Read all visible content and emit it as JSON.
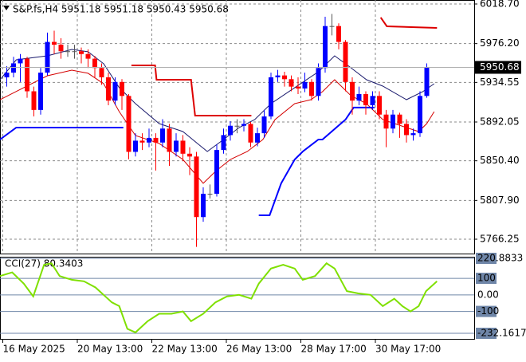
{
  "chart_data": [
    {
      "type": "candlestick",
      "title": "S&P.fs,H4  5951.18 5951.18 5950.43 5950.68",
      "xlim": [
        -1,
        69
      ],
      "xticks": [
        {
          "value": 0,
          "label": "16 May 2025"
        },
        {
          "value": 11,
          "label": "20 May 13:00"
        },
        {
          "value": 22,
          "label": "22 May 13:00"
        },
        {
          "value": 33,
          "label": "26 May 13:00"
        },
        {
          "value": 44,
          "label": "28 May 17:00"
        },
        {
          "value": 55,
          "label": "30 May 17:00"
        }
      ],
      "ylim": [
        5750.85,
        6022.98
      ],
      "yticks": [
        {
          "value": 6018.7,
          "label": "6018.70"
        },
        {
          "value": 5976.2,
          "label": "5976.20"
        },
        5934.55,
        5892.05,
        {
          "value": 5850.4,
          "label": "5850.40"
        },
        {
          "value": 5807.9,
          "label": "5807.90"
        },
        5766.25
      ],
      "grid": true,
      "last_price": 5950.68,
      "up_color": "#0000ff",
      "down_color": "#ff0000",
      "open": [
        5940,
        5945,
        5955,
        5960,
        5925,
        5905,
        5945,
        5978,
        5975,
        5968,
        5968,
        5968,
        5965,
        5960,
        5950,
        5940,
        5915,
        5935,
        5920,
        5860,
        5872,
        5870,
        5875,
        5870,
        5885,
        5860,
        5872,
        5858,
        5855,
        5790,
        5815,
        5815,
        5862,
        5878,
        5888,
        5888,
        5890,
        5870,
        5880,
        5898,
        5940,
        5942,
        5938,
        5930,
        5928,
        5935,
        5920,
        5950,
        5995,
        5995,
        5978,
        5935,
        5915,
        5922,
        5910,
        5920,
        5900,
        5885,
        5900,
        5890,
        5878,
        5880,
        5920
      ],
      "high": [
        5952,
        5962,
        5965,
        5962,
        5930,
        5950,
        5988,
        5990,
        5982,
        5975,
        5975,
        5972,
        5970,
        5963,
        5955,
        5945,
        5940,
        5938,
        5922,
        5880,
        5880,
        5885,
        5880,
        5895,
        5890,
        5880,
        5878,
        5865,
        5860,
        5822,
        5825,
        5868,
        5885,
        5893,
        5895,
        5895,
        5892,
        5886,
        5905,
        5945,
        5948,
        5946,
        5942,
        5940,
        5945,
        5938,
        5955,
        6005,
        6008,
        5998,
        5980,
        5940,
        5930,
        5925,
        5925,
        5925,
        5905,
        5905,
        5902,
        5895,
        5885,
        5925,
        5955
      ],
      "low": [
        5930,
        5940,
        5935,
        5918,
        5898,
        5900,
        5942,
        5965,
        5960,
        5962,
        5960,
        5955,
        5950,
        5940,
        5932,
        5910,
        5910,
        5905,
        5852,
        5855,
        5862,
        5865,
        5840,
        5865,
        5845,
        5855,
        5850,
        5835,
        5758,
        5785,
        5810,
        5812,
        5858,
        5872,
        5880,
        5882,
        5865,
        5866,
        5875,
        5895,
        5935,
        5930,
        5925,
        5922,
        5924,
        5915,
        5915,
        5945,
        5985,
        5970,
        5925,
        5900,
        5910,
        5900,
        5905,
        5895,
        5865,
        5880,
        5875,
        5870,
        5872,
        5876,
        5918
      ],
      "close": [
        5945,
        5955,
        5960,
        5925,
        5905,
        5945,
        5978,
        5975,
        5968,
        5968,
        5968,
        5965,
        5960,
        5950,
        5940,
        5915,
        5935,
        5920,
        5860,
        5872,
        5870,
        5875,
        5870,
        5885,
        5860,
        5872,
        5858,
        5855,
        5790,
        5815,
        5815,
        5862,
        5878,
        5888,
        5888,
        5890,
        5870,
        5880,
        5898,
        5940,
        5942,
        5938,
        5930,
        5928,
        5935,
        5920,
        5950,
        5995,
        5995,
        5978,
        5935,
        5915,
        5922,
        5910,
        5920,
        5900,
        5885,
        5900,
        5890,
        5878,
        5880,
        5920,
        5950.68
      ],
      "series": [
        {
          "color": "#1c1c6e",
          "width": 1,
          "x": [
            -1,
            1.4,
            6,
            9.6,
            12,
            14.3,
            16.6,
            19,
            22.5,
            26,
            29.6,
            32,
            34.3,
            36.6,
            39,
            42.5,
            46,
            48.4,
            50.8,
            53.1,
            55.5,
            59,
            61.4,
            63.1
          ],
          "values": [
            5937.4,
            5958.8,
            5963.1,
            5969.9,
            5967.4,
            5954.5,
            5928.9,
            5911.7,
            5890.3,
            5881.8,
            5860.4,
            5873.2,
            5886.1,
            5894.6,
            5911.7,
            5928.9,
            5946.0,
            5963.1,
            5950.2,
            5937.4,
            5930.6,
            5916.0,
            5924.6,
            5933.1
          ]
        },
        {
          "color": "#d40000",
          "width": 1,
          "x": [
            -1,
            2.5,
            6,
            9.6,
            12,
            14.3,
            16.6,
            19,
            22.5,
            26,
            29,
            30.8,
            33,
            35.5,
            37.8,
            39.6,
            42.5,
            44.9,
            46.6,
            48.4,
            50.8,
            53.1,
            55.5,
            59,
            60.8,
            62,
            63.1
          ],
          "values": [
            5916.0,
            5928.9,
            5941.7,
            5947.7,
            5944.3,
            5933.1,
            5903.2,
            5877.5,
            5869.0,
            5851.8,
            5826.2,
            5839.0,
            5851.8,
            5860.4,
            5873.2,
            5894.6,
            5911.7,
            5916.0,
            5924.6,
            5937.4,
            5920.3,
            5911.7,
            5894.6,
            5886.1,
            5881.8,
            5890.3,
            5903.2
          ]
        },
        {
          "color": "#0000ff",
          "width": 2,
          "x": [
            -1,
            1.4,
            17.2,
            18,
            37.2,
            38.8,
            40.5,
            42.5,
            43.7,
            46,
            46.6,
            50,
            51.2,
            54.3
          ],
          "values": [
            5873.2,
            5886.1,
            5886.1,
            null,
            5791.9,
            5791.9,
            5826.2,
            5851.8,
            5860.4,
            5873.2,
            5873.2,
            5894.6,
            5907.5,
            5907.5
          ]
        },
        {
          "color": "#dd0000",
          "width": 2,
          "x": [
            18.4,
            21.9,
            22.1,
            27.2,
            27.8,
            36.1,
            37,
            55.2,
            56.1,
            63.5
          ],
          "values": [
            5952.8,
            5952.8,
            5937.4,
            5937.4,
            5898.9,
            5898.9,
            null,
            6004.2,
            5994.7,
            5993.0
          ]
        }
      ]
    },
    {
      "type": "line",
      "title": "CCI(27) 80.3403",
      "ylim": [
        -232.1617,
        220.8833
      ],
      "yticks": [
        220.8833,
        100,
        {
          "value": 0,
          "label": "0.00"
        },
        -100,
        -232.1617
      ],
      "color": "#7fe000",
      "x": [
        -1,
        0.8,
        2.5,
        3.9,
        5.5,
        6.6,
        7.8,
        9.6,
        11.4,
        13.1,
        15.5,
        16.6,
        17.8,
        19,
        20.8,
        22.5,
        24.3,
        26,
        27.2,
        29,
        30.8,
        32.5,
        34.3,
        36.1,
        37.2,
        39,
        40.8,
        42.5,
        43.7,
        45.5,
        47.2,
        48.4,
        50.2,
        51.9,
        53.7,
        55.5,
        57.2,
        58.4,
        59.6,
        60.8,
        61.9,
        63.5
      ],
      "values": [
        114,
        136,
        68,
        -9,
        182,
        191,
        114,
        91,
        82,
        45,
        -45,
        -68,
        -205,
        -227,
        -159,
        -114,
        -114,
        -100,
        -159,
        -114,
        -45,
        -9,
        0,
        -23,
        68,
        159,
        182,
        159,
        91,
        114,
        191,
        159,
        23,
        9,
        0,
        -68,
        -23,
        -68,
        -100,
        -68,
        23,
        82
      ]
    }
  ]
}
